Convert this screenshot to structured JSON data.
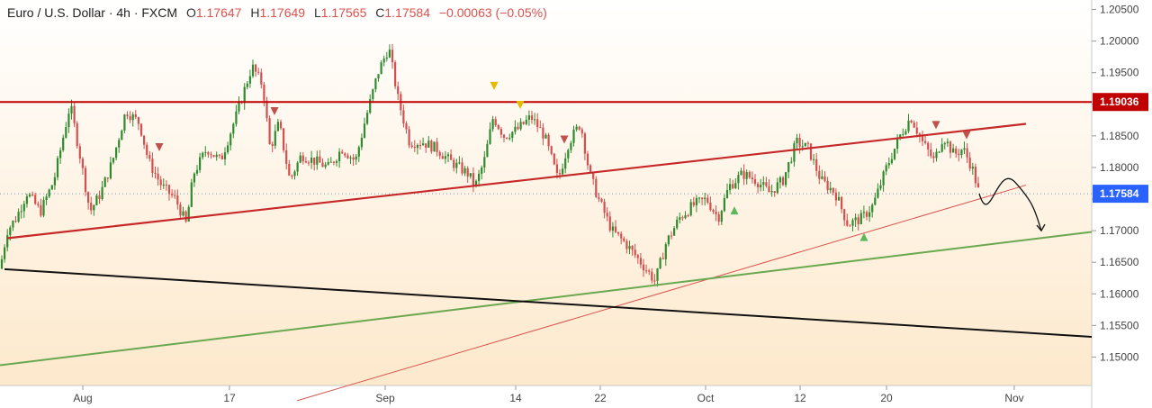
{
  "legend": {
    "symbol": "Euro / U.S. Dollar · 4h · FXCM",
    "open_label": "O",
    "open": "1.17647",
    "high_label": "H",
    "high": "1.17649",
    "low_label": "L",
    "low": "1.17565",
    "close_label": "C",
    "close": "1.17584",
    "change": "−0.00063 (−0.05%)"
  },
  "colors": {
    "background_top": "#ffffff",
    "background_bottom": "#fde9cc",
    "candle_up": "#2e8b2e",
    "candle_down": "#d2504f",
    "resistance": "#c00000",
    "channel": "#c62828",
    "trend_thin": "#d9534f",
    "support_green": "#6aa84f",
    "support_black": "#111111",
    "price_tag": "#2962ff",
    "resistance_tag": "#c00000",
    "marker_red": "#c0504d",
    "marker_yellow": "#e6b800",
    "marker_green": "#5cb85c"
  },
  "chart_data": {
    "type": "candlestick",
    "title": "Euro / U.S. Dollar · 4h · FXCM",
    "x_ticks": [
      "Aug",
      "17",
      "Sep",
      "14",
      "22",
      "Oct",
      "12",
      "20",
      "Nov"
    ],
    "y_ticks": [
      "1.20500",
      "1.20000",
      "1.19500",
      "1.19000",
      "1.18500",
      "1.18000",
      "1.17500",
      "1.17000",
      "1.16500",
      "1.16000",
      "1.15500",
      "1.15000"
    ],
    "ylim": [
      1.1455,
      1.2065
    ],
    "price_labels": [
      {
        "value": 1.19036,
        "text": "1.19036",
        "role": "resistance"
      },
      {
        "value": 1.17584,
        "text": "1.17584",
        "role": "last"
      }
    ],
    "price_path": [
      [
        0,
        1.164
      ],
      [
        8,
        1.17
      ],
      [
        18,
        1.172
      ],
      [
        30,
        1.176
      ],
      [
        45,
        1.173
      ],
      [
        60,
        1.178
      ],
      [
        78,
        1.19
      ],
      [
        90,
        1.181
      ],
      [
        100,
        1.173
      ],
      [
        112,
        1.176
      ],
      [
        125,
        1.181
      ],
      [
        140,
        1.189
      ],
      [
        155,
        1.187
      ],
      [
        165,
        1.181
      ],
      [
        180,
        1.177
      ],
      [
        195,
        1.175
      ],
      [
        207,
        1.171
      ],
      [
        215,
        1.179
      ],
      [
        230,
        1.183
      ],
      [
        245,
        1.181
      ],
      [
        262,
        1.188
      ],
      [
        280,
        1.196
      ],
      [
        292,
        1.193
      ],
      [
        300,
        1.183
      ],
      [
        310,
        1.187
      ],
      [
        322,
        1.178
      ],
      [
        335,
        1.182
      ],
      [
        350,
        1.181
      ],
      [
        365,
        1.18
      ],
      [
        380,
        1.183
      ],
      [
        395,
        1.181
      ],
      [
        405,
        1.187
      ],
      [
        420,
        1.195
      ],
      [
        432,
        1.199
      ],
      [
        442,
        1.191
      ],
      [
        455,
        1.184
      ],
      [
        470,
        1.184
      ],
      [
        485,
        1.183
      ],
      [
        500,
        1.181
      ],
      [
        520,
        1.179
      ],
      [
        528,
        1.177
      ],
      [
        538,
        1.181
      ],
      [
        548,
        1.188
      ],
      [
        560,
        1.185
      ],
      [
        575,
        1.186
      ],
      [
        590,
        1.188
      ],
      [
        605,
        1.185
      ],
      [
        620,
        1.178
      ],
      [
        632,
        1.184
      ],
      [
        645,
        1.187
      ],
      [
        655,
        1.179
      ],
      [
        665,
        1.175
      ],
      [
        680,
        1.17
      ],
      [
        695,
        1.168
      ],
      [
        712,
        1.165
      ],
      [
        728,
        1.162
      ],
      [
        740,
        1.168
      ],
      [
        755,
        1.172
      ],
      [
        770,
        1.174
      ],
      [
        785,
        1.175
      ],
      [
        798,
        1.172
      ],
      [
        810,
        1.177
      ],
      [
        825,
        1.179
      ],
      [
        840,
        1.178
      ],
      [
        855,
        1.176
      ],
      [
        870,
        1.178
      ],
      [
        885,
        1.184
      ],
      [
        898,
        1.183
      ],
      [
        912,
        1.178
      ],
      [
        928,
        1.176
      ],
      [
        942,
        1.171
      ],
      [
        958,
        1.172
      ],
      [
        970,
        1.174
      ],
      [
        985,
        1.18
      ],
      [
        1000,
        1.185
      ],
      [
        1012,
        1.188
      ],
      [
        1025,
        1.184
      ],
      [
        1038,
        1.181
      ],
      [
        1048,
        1.185
      ],
      [
        1060,
        1.182
      ],
      [
        1070,
        1.183
      ],
      [
        1080,
        1.18
      ],
      [
        1088,
        1.17584
      ]
    ],
    "drawings": [
      {
        "name": "resistance-line",
        "p1": [
          0,
          1.19036
        ],
        "p2": [
          1213,
          1.19036
        ]
      },
      {
        "name": "ascending-channel-line",
        "p1": [
          8,
          1.1688
        ],
        "p2": [
          1140,
          1.1869
        ]
      },
      {
        "name": "thin-trend-line",
        "p1": [
          330,
          1.1431
        ],
        "p2": [
          1140,
          1.1772
        ]
      },
      {
        "name": "green-support-line",
        "p1": [
          0,
          1.1487
        ],
        "p2": [
          1213,
          1.1698
        ]
      },
      {
        "name": "black-support-line",
        "p1": [
          5,
          1.1639
        ],
        "p2": [
          1213,
          1.1532
        ]
      }
    ],
    "markers": [
      {
        "color": "red",
        "shape": "down",
        "x": 177,
        "value": 1.1832
      },
      {
        "color": "red",
        "shape": "down",
        "x": 305,
        "value": 1.1889
      },
      {
        "color": "yellow",
        "shape": "down",
        "x": 549,
        "value": 1.1929
      },
      {
        "color": "yellow",
        "shape": "down",
        "x": 578,
        "value": 1.1899
      },
      {
        "color": "red",
        "shape": "down",
        "x": 627,
        "value": 1.1844
      },
      {
        "color": "green",
        "shape": "up",
        "x": 816,
        "value": 1.1732
      },
      {
        "color": "green",
        "shape": "up",
        "x": 960,
        "value": 1.169
      },
      {
        "color": "red",
        "shape": "down",
        "x": 1040,
        "value": 1.1867
      },
      {
        "color": "red",
        "shape": "down",
        "x": 1074,
        "value": 1.1851
      }
    ],
    "forecast_curve": [
      [
        1088,
        1.17584
      ],
      [
        1100,
        1.1728
      ],
      [
        1128,
        1.1765
      ],
      [
        1150,
        1.1732
      ],
      [
        1157,
        1.17
      ]
    ]
  }
}
